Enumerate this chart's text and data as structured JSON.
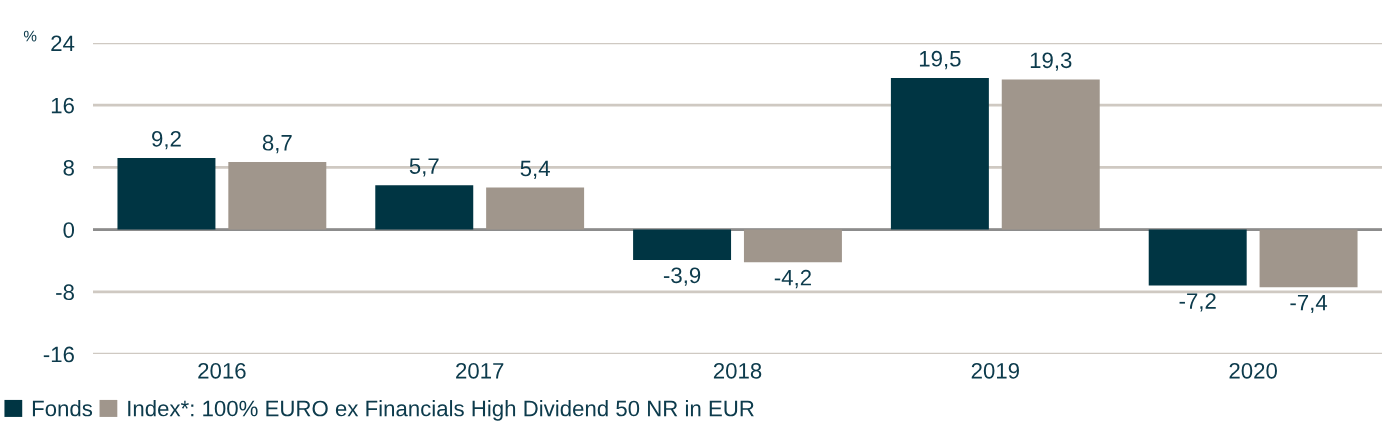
{
  "chart_data": {
    "type": "bar",
    "ylabel": "%",
    "categories": [
      "2016",
      "2017",
      "2018",
      "2019",
      "2020"
    ],
    "series": [
      {
        "name": "Fonds",
        "color": "#003543",
        "values": [
          9.2,
          5.7,
          -3.9,
          19.5,
          -7.2
        ],
        "value_labels": [
          "9,2",
          "5,7",
          "-3,9",
          "19,5",
          "-7,2"
        ]
      },
      {
        "name": "Index*: 100% EURO ex Financials High Dividend 50 NR in EUR",
        "color": "#a0968c",
        "values": [
          8.7,
          5.4,
          -4.2,
          19.3,
          -7.4
        ],
        "value_labels": [
          "8,7",
          "5,4",
          "-4,2",
          "19,3",
          "-7,4"
        ]
      }
    ],
    "ylim": [
      -16,
      24
    ],
    "yticks": [
      -16,
      -8,
      0,
      8,
      16,
      24
    ],
    "grid": "y",
    "legend": "bottom left",
    "ref_lines": [
      {
        "axis": "y",
        "value": 0,
        "color": "#8c8c8c"
      }
    ]
  }
}
